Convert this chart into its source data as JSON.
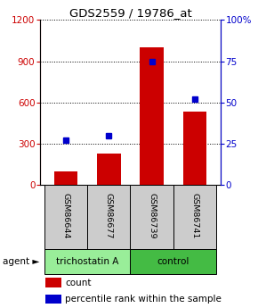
{
  "title": "GDS2559 / 19786_at",
  "samples": [
    "GSM86644",
    "GSM86677",
    "GSM86739",
    "GSM86741"
  ],
  "counts": [
    100,
    230,
    1000,
    530
  ],
  "percentiles": [
    27,
    30,
    75,
    52
  ],
  "ylim_left": [
    0,
    1200
  ],
  "ylim_right": [
    0,
    100
  ],
  "yticks_left": [
    0,
    300,
    600,
    900,
    1200
  ],
  "yticks_right": [
    0,
    25,
    50,
    75,
    100
  ],
  "bar_color": "#cc0000",
  "dot_color": "#0000cc",
  "agents": [
    {
      "label": "trichostatin A",
      "span": [
        0,
        1
      ],
      "color": "#99ee99"
    },
    {
      "label": "control",
      "span": [
        2,
        3
      ],
      "color": "#44bb44"
    }
  ],
  "agent_label": "agent ►",
  "sample_bg_color": "#cccccc",
  "legend_count_label": "count",
  "legend_pct_label": "percentile rank within the sample",
  "bar_width": 0.55
}
